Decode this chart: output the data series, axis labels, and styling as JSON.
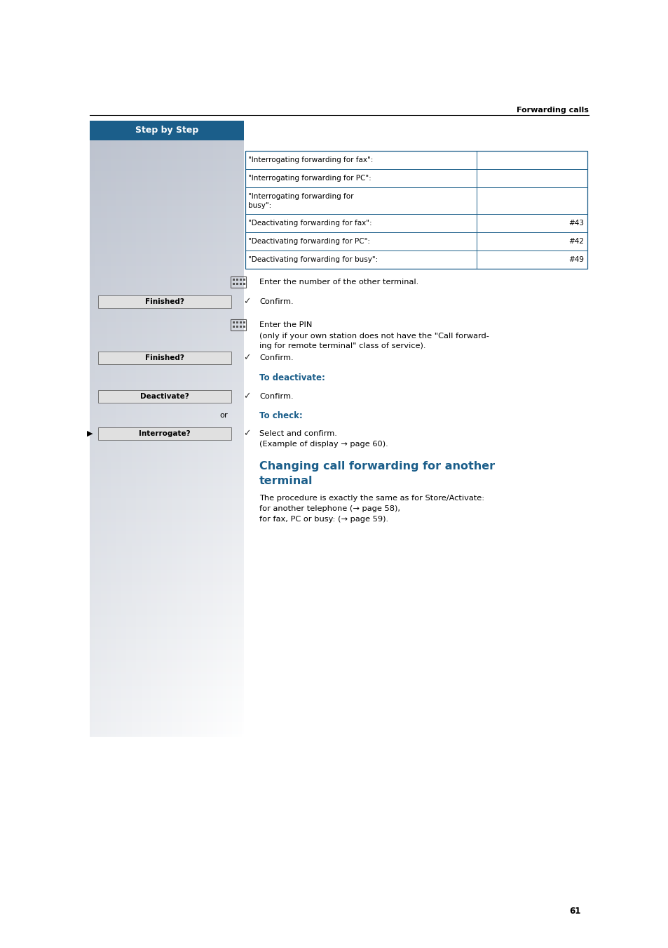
{
  "page_bg": "#ffffff",
  "header_text": "Forwarding calls",
  "header_line_color": "#000000",
  "sidebar_header_bg": "#1b5e8a",
  "sidebar_header_text": "Step by Step",
  "blue_color": "#1b5e8a",
  "text_color": "#000000",
  "page_number": "61",
  "table_rows": [
    {
      "label": "\"Interrogating forwarding for fax\":",
      "value": "",
      "has_value": false,
      "multiline": false
    },
    {
      "label": "\"Interrogating forwarding for PC\":",
      "value": "",
      "has_value": false,
      "multiline": false
    },
    {
      "label": "\"Interrogating forwarding for\nbusy\":",
      "value": "",
      "has_value": false,
      "multiline": true
    },
    {
      "label": "\"Deactivating forwarding for fax\":",
      "value": "#43",
      "has_value": true,
      "multiline": false
    },
    {
      "label": "\"Deactivating forwarding for PC\":",
      "value": "#42",
      "has_value": true,
      "multiline": false
    },
    {
      "label": "\"Deactivating forwarding for busy\":",
      "value": "#49",
      "has_value": true,
      "multiline": false
    }
  ]
}
